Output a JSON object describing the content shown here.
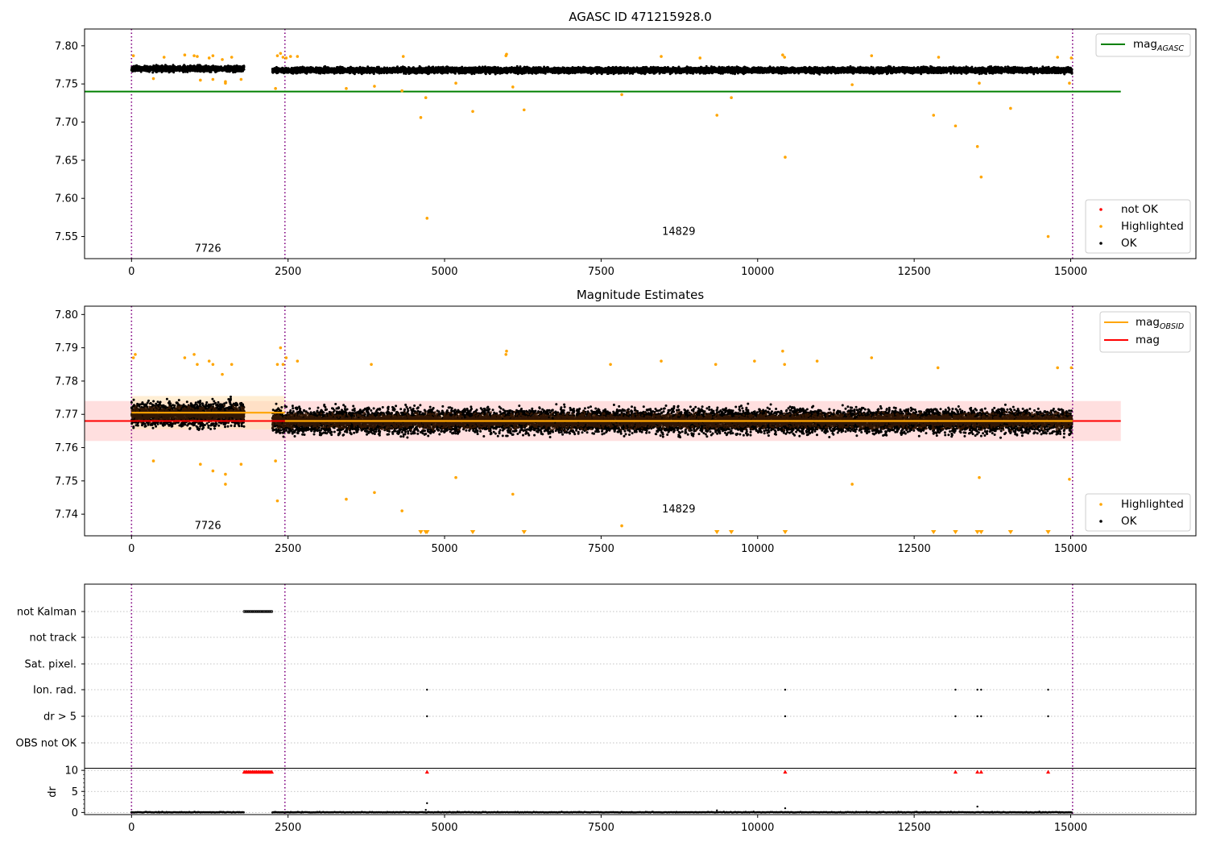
{
  "colors": {
    "ok": "#000000",
    "highlighted": "#ffa500",
    "not_ok": "#ff0000",
    "mag_agasc": "#008000",
    "mag_obsid": "#ffa500",
    "mag": "#ff0000",
    "obsid_divider": "#800080",
    "mag_band": "#ffc0c0",
    "obsid_band": "#ffe0b0"
  },
  "chart_data": [
    {
      "type": "scatter",
      "title": "AGASC ID 471215928.0",
      "xlim": [
        -750,
        17000
      ],
      "ylim": [
        7.521,
        7.822
      ],
      "x_ticks": [
        0,
        2500,
        5000,
        7500,
        10000,
        12500,
        15000
      ],
      "y_ticks": [
        7.55,
        7.6,
        7.65,
        7.7,
        7.75,
        7.8
      ],
      "obsid_boundaries": [
        0,
        2450,
        15030
      ],
      "obsid_labels": [
        {
          "text": "7726",
          "x": 1220,
          "y": 7.53
        },
        {
          "text": "14829",
          "x": 8740,
          "y": 7.552
        }
      ],
      "hlines": [
        {
          "name": "mag_AGASC",
          "y": 7.74,
          "x": [
            -750,
            15800
          ],
          "color_key": "mag_agasc"
        }
      ],
      "ok_clusters": [
        {
          "x": [
            0,
            1800
          ],
          "center": 7.77,
          "spread": 0.0055
        },
        {
          "x": [
            2250,
            15020
          ],
          "center": 7.768,
          "spread": 0.0055
        }
      ],
      "highlighted_points": [
        [
          30,
          7.787
        ],
        [
          520,
          7.785
        ],
        [
          850,
          7.788
        ],
        [
          1000,
          7.787
        ],
        [
          1050,
          7.786
        ],
        [
          1240,
          7.784
        ],
        [
          1300,
          7.787
        ],
        [
          1450,
          7.782
        ],
        [
          1600,
          7.785
        ],
        [
          2330,
          7.787
        ],
        [
          2380,
          7.79
        ],
        [
          2420,
          7.785
        ],
        [
          2470,
          7.784
        ],
        [
          2540,
          7.786
        ],
        [
          2650,
          7.786
        ],
        [
          4340,
          7.786
        ],
        [
          5990,
          7.789
        ],
        [
          5980,
          7.787
        ],
        [
          8460,
          7.786
        ],
        [
          10400,
          7.788
        ],
        [
          11820,
          7.787
        ],
        [
          12890,
          7.785
        ],
        [
          14790,
          7.785
        ],
        [
          15010,
          7.784
        ],
        [
          9080,
          7.784
        ],
        [
          10430,
          7.785
        ],
        [
          350,
          7.757
        ],
        [
          1100,
          7.755
        ],
        [
          1300,
          7.756
        ],
        [
          1500,
          7.751
        ],
        [
          1500,
          7.753
        ],
        [
          1750,
          7.756
        ],
        [
          2300,
          7.744
        ],
        [
          3430,
          7.744
        ],
        [
          3880,
          7.747
        ],
        [
          5180,
          7.751
        ],
        [
          6090,
          7.746
        ],
        [
          11510,
          7.749
        ],
        [
          13540,
          7.751
        ],
        [
          14980,
          7.751
        ],
        [
          4320,
          7.741
        ],
        [
          4620,
          7.706
        ],
        [
          4700,
          7.732
        ],
        [
          4720,
          7.574
        ],
        [
          5450,
          7.714
        ],
        [
          6270,
          7.716
        ],
        [
          7830,
          7.736
        ],
        [
          9350,
          7.709
        ],
        [
          9580,
          7.732
        ],
        [
          10440,
          7.654
        ],
        [
          12810,
          7.709
        ],
        [
          13160,
          7.695
        ],
        [
          13510,
          7.668
        ],
        [
          13570,
          7.628
        ],
        [
          14040,
          7.718
        ],
        [
          14640,
          7.55
        ]
      ],
      "legends": [
        {
          "position": "upper-right",
          "entries": [
            {
              "label": "mag",
              "sub": "AGASC",
              "kind": "line",
              "color_key": "mag_agasc"
            }
          ]
        },
        {
          "position": "lower-right",
          "entries": [
            {
              "label": "not OK",
              "kind": "marker",
              "color_key": "not_ok"
            },
            {
              "label": "Highlighted",
              "kind": "marker",
              "color_key": "highlighted"
            },
            {
              "label": "OK",
              "kind": "marker",
              "color_key": "ok"
            }
          ]
        }
      ]
    },
    {
      "type": "scatter",
      "title": "Magnitude Estimates",
      "xlim": [
        -750,
        17000
      ],
      "ylim": [
        7.7335,
        7.8025
      ],
      "x_ticks": [
        0,
        2500,
        5000,
        7500,
        10000,
        12500,
        15000
      ],
      "y_ticks": [
        7.74,
        7.75,
        7.76,
        7.77,
        7.78,
        7.79,
        7.8
      ],
      "obsid_boundaries": [
        0,
        2450,
        15030
      ],
      "obsid_labels": [
        {
          "text": "7726",
          "x": 1220,
          "y": 7.7355
        },
        {
          "text": "14829",
          "x": 8740,
          "y": 7.7405
        }
      ],
      "mag": {
        "name": "mag",
        "value": 7.768,
        "band": [
          7.762,
          7.774
        ],
        "x": [
          -750,
          15800
        ]
      },
      "obsid_means": [
        {
          "name": "mag_OBSID",
          "x": [
            0,
            2450
          ],
          "value": 7.7705,
          "band": [
            7.7655,
            7.7755
          ]
        },
        {
          "name": "mag_OBSID",
          "x": [
            2450,
            15030
          ],
          "value": 7.768,
          "band": [
            7.766,
            7.77
          ]
        }
      ],
      "ok_clusters": [
        {
          "x": [
            0,
            1800
          ],
          "center": 7.77,
          "spread": 0.0055
        },
        {
          "x": [
            2250,
            15020
          ],
          "center": 7.768,
          "spread": 0.0055
        }
      ],
      "highlighted_points": [
        [
          30,
          7.787
        ],
        [
          60,
          7.788
        ],
        [
          850,
          7.787
        ],
        [
          1000,
          7.788
        ],
        [
          1050,
          7.785
        ],
        [
          1240,
          7.786
        ],
        [
          1300,
          7.785
        ],
        [
          1450,
          7.782
        ],
        [
          1600,
          7.785
        ],
        [
          2330,
          7.785
        ],
        [
          2380,
          7.79
        ],
        [
          2420,
          7.785
        ],
        [
          2470,
          7.787
        ],
        [
          2650,
          7.786
        ],
        [
          3830,
          7.785
        ],
        [
          5990,
          7.789
        ],
        [
          5980,
          7.788
        ],
        [
          7650,
          7.785
        ],
        [
          8460,
          7.786
        ],
        [
          9330,
          7.785
        ],
        [
          9950,
          7.786
        ],
        [
          10400,
          7.789
        ],
        [
          10430,
          7.785
        ],
        [
          11820,
          7.787
        ],
        [
          12880,
          7.784
        ],
        [
          14790,
          7.784
        ],
        [
          15010,
          7.784
        ],
        [
          10950,
          7.786
        ],
        [
          350,
          7.756
        ],
        [
          1100,
          7.755
        ],
        [
          1300,
          7.753
        ],
        [
          1500,
          7.749
        ],
        [
          1500,
          7.752
        ],
        [
          1750,
          7.755
        ],
        [
          2300,
          7.756
        ],
        [
          2330,
          7.744
        ],
        [
          3430,
          7.7445
        ],
        [
          3880,
          7.7465
        ],
        [
          4320,
          7.741
        ],
        [
          5180,
          7.751
        ],
        [
          6090,
          7.746
        ],
        [
          7830,
          7.7365
        ],
        [
          11510,
          7.749
        ],
        [
          13540,
          7.751
        ],
        [
          14980,
          7.7505
        ]
      ],
      "below_range_markers_x": [
        4620,
        4700,
        4720,
        5450,
        6270,
        9350,
        9580,
        10440,
        12810,
        13160,
        13510,
        13570,
        14040,
        14640
      ],
      "legends": [
        {
          "position": "upper-right",
          "entries": [
            {
              "label": "mag",
              "sub": "OBSID",
              "kind": "line",
              "color_key": "mag_obsid"
            },
            {
              "label": "mag",
              "sub": "",
              "kind": "line",
              "color_key": "mag"
            }
          ]
        },
        {
          "position": "lower-right",
          "entries": [
            {
              "label": "Highlighted",
              "kind": "marker",
              "color_key": "highlighted"
            },
            {
              "label": "OK",
              "kind": "marker",
              "color_key": "ok"
            }
          ]
        }
      ]
    },
    {
      "type": "scatter",
      "xlim": [
        -750,
        17000
      ],
      "x_ticks": [
        0,
        2500,
        5000,
        7500,
        10000,
        12500,
        15000
      ],
      "obsid_boundaries": [
        0,
        2450,
        15030
      ],
      "flag_rows": [
        "not Kalman",
        "not track",
        "Sat. pixel.",
        "Ion. rad.",
        "dr > 5",
        "OBS not OK"
      ],
      "flags": {
        "not Kalman": {
          "x": [
            1800,
            2250
          ],
          "dense": true
        },
        "not track": {
          "x": []
        },
        "Sat. pixel.": {
          "x": []
        },
        "Ion. rad.": {
          "x": [
            4720,
            10440,
            13160,
            13510,
            13570,
            14640
          ]
        },
        "dr > 5": {
          "x": [
            4720,
            10440,
            13160,
            13510,
            13570,
            14640
          ]
        },
        "OBS not OK": {
          "x": []
        }
      },
      "dr": {
        "ylabel": "dr",
        "y_ticks": [
          0,
          5,
          10
        ],
        "ylim": [
          -0.5,
          10.5
        ],
        "capped_at": 10,
        "capped_points_x_range": [
          1800,
          2250
        ],
        "capped_points_x": [
          4720,
          10440,
          13160,
          13510,
          13570,
          14640
        ],
        "ok_segments": [
          [
            0,
            1800
          ],
          [
            2250,
            15020
          ]
        ],
        "outliers": [
          [
            4720,
            2.2
          ],
          [
            13510,
            1.4
          ],
          [
            10440,
            1.0
          ],
          [
            4700,
            0.6
          ],
          [
            9350,
            0.5
          ]
        ]
      }
    }
  ]
}
